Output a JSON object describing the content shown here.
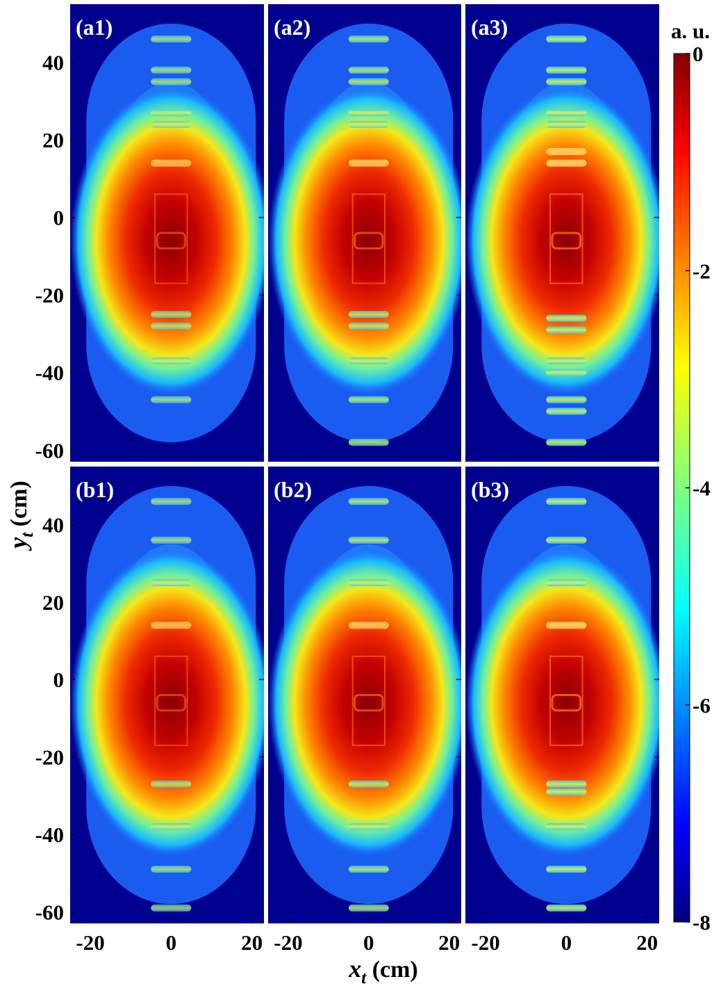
{
  "chart_data": {
    "type": "heatmap",
    "panels": [
      {
        "label": "(a1)",
        "row": 0,
        "col": 0,
        "sharpness": 0.55,
        "bands": [
          -47,
          -37,
          -28,
          -25,
          14,
          24,
          27,
          35,
          38,
          46
        ]
      },
      {
        "label": "(a2)",
        "row": 0,
        "col": 1,
        "sharpness": 0.7,
        "bands": [
          -58,
          -47,
          -37,
          -28,
          -25,
          14,
          24,
          27,
          35,
          38,
          46
        ]
      },
      {
        "label": "(a3)",
        "row": 0,
        "col": 2,
        "sharpness": 0.9,
        "bands": [
          -58,
          -50,
          -47,
          -40,
          -37,
          -29,
          -26,
          14,
          17,
          24,
          27,
          35,
          38,
          46
        ]
      },
      {
        "label": "(b1)",
        "row": 1,
        "col": 0,
        "sharpness": 0.55,
        "bands": [
          -59,
          -49,
          -38,
          -27,
          14,
          25,
          36,
          46
        ]
      },
      {
        "label": "(b2)",
        "row": 1,
        "col": 1,
        "sharpness": 0.7,
        "bands": [
          -59,
          -49,
          -38,
          -27,
          14,
          25,
          36,
          46
        ]
      },
      {
        "label": "(b3)",
        "row": 1,
        "col": 2,
        "sharpness": 0.9,
        "bands": [
          -59,
          -49,
          -38,
          -29,
          -27,
          14,
          25,
          36,
          46
        ]
      }
    ],
    "xlabel": "x",
    "xlabel_sub": "t",
    "xlabel_unit": " (cm)",
    "ylabel": "y",
    "ylabel_sub": "t",
    "ylabel_unit": " (cm)",
    "xlim": [
      -25,
      23
    ],
    "ylim": [
      -63,
      55
    ],
    "x_ticks": [
      -20,
      0,
      20
    ],
    "x_tick_labels": [
      "-20",
      "0",
      "20"
    ],
    "y_ticks": [
      40,
      20,
      0,
      -20,
      -40,
      -60
    ],
    "y_tick_labels": [
      "40",
      "20",
      "0",
      "-20",
      "-40",
      "-60"
    ],
    "hotspot_center": [
      0,
      -6
    ],
    "colorbar": {
      "title": "a. u.",
      "range": [
        -8,
        0
      ],
      "ticks": [
        0,
        -2,
        -4,
        -6,
        -8
      ],
      "tick_labels": [
        "0",
        "-2",
        "-4",
        "-6",
        "-8"
      ],
      "colormap": "jet"
    },
    "colors": {
      "background": "#00008f",
      "separator": "#ffffff"
    }
  }
}
